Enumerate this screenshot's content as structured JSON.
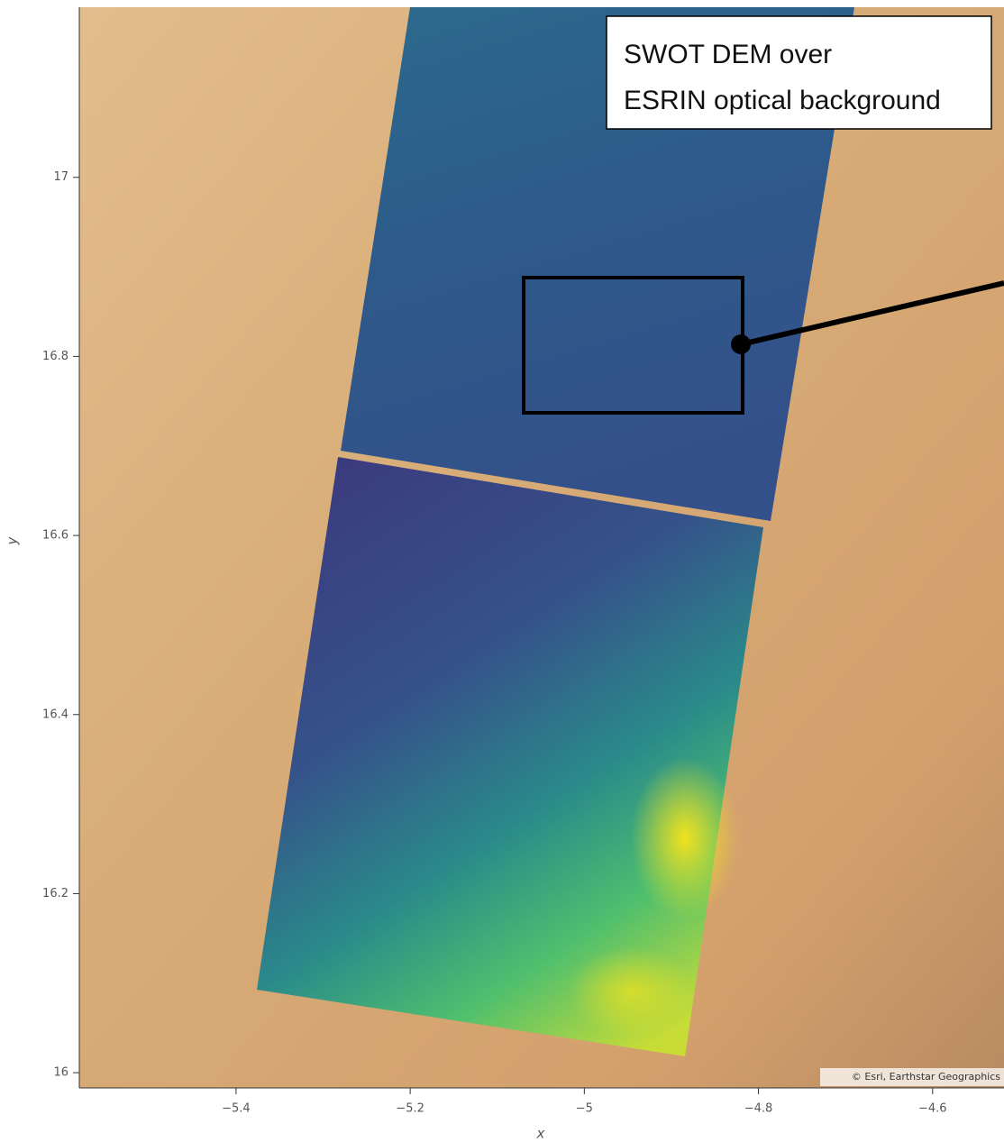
{
  "chart_data": {
    "type": "map",
    "annotation": [
      "SWOT DEM over",
      "ESRIN optical background"
    ],
    "attribution": "© Esri, Earthstar Geographics",
    "xlabel": "x",
    "ylabel": "y",
    "xlim": [
      -5.58,
      -4.518
    ],
    "ylim": [
      15.983,
      17.19
    ],
    "xticks": [
      {
        "value": -5.4,
        "label": "−5.4"
      },
      {
        "value": -5.2,
        "label": "−5.2"
      },
      {
        "value": -5,
        "label": "−5"
      },
      {
        "value": -4.8,
        "label": "−4.8"
      },
      {
        "value": -4.6,
        "label": "−4.6"
      }
    ],
    "yticks": [
      16,
      16.2,
      16.4,
      16.6,
      16.8,
      17
    ]
  }
}
